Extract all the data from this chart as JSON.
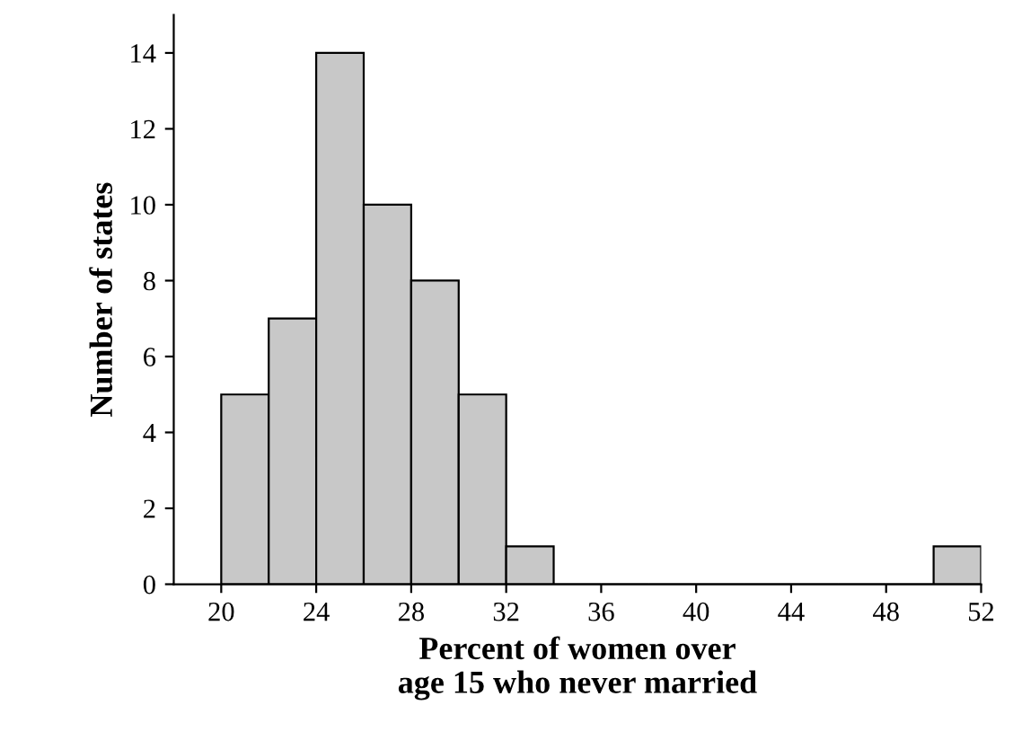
{
  "chart_data": {
    "type": "histogram",
    "xlabel": "Percent of women over\nage 15 who never married",
    "ylabel": "Number of states",
    "bins": [
      20,
      22,
      24,
      26,
      28,
      30,
      32,
      34,
      36,
      38,
      40,
      42,
      44,
      46,
      48,
      50,
      52
    ],
    "values": [
      5,
      7,
      14,
      10,
      8,
      5,
      1,
      0,
      0,
      0,
      0,
      0,
      0,
      0,
      0,
      1
    ],
    "color": "#c8c8c8",
    "xlim": [
      18,
      52
    ],
    "xticks": [
      20,
      24,
      28,
      32,
      36,
      40,
      44,
      48,
      52
    ],
    "ylim": [
      0,
      15
    ],
    "yticks": [
      0,
      2,
      4,
      6,
      8,
      10,
      12,
      14
    ],
    "grid": false
  }
}
